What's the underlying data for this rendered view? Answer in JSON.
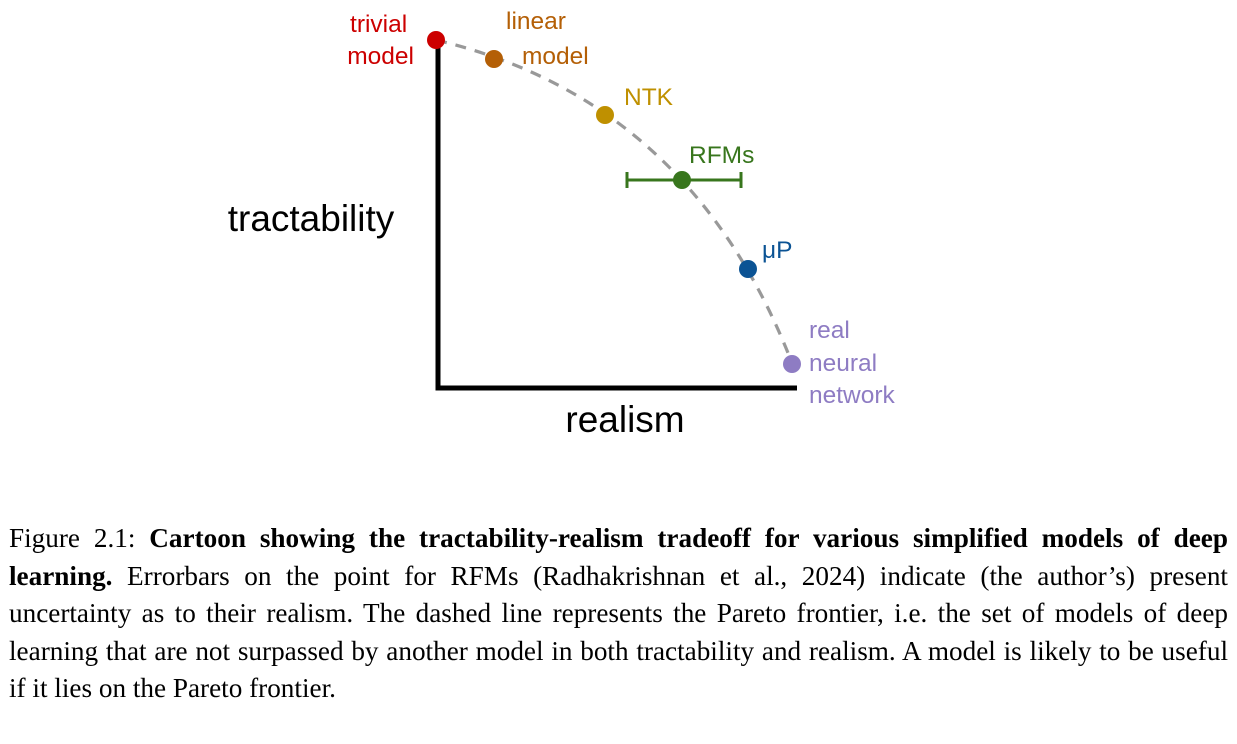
{
  "figure": {
    "y_axis_label": "tractability",
    "x_axis_label": "realism",
    "colors": {
      "axis": "#000000",
      "frontier": "#999999",
      "trivial_model": "#cc0000",
      "linear_model": "#b45f06",
      "ntk": "#bf9000",
      "rfms": "#38761d",
      "mup": "#0b5394",
      "real_network": "#8e7cc3"
    },
    "points": [
      {
        "name": "trivial-model",
        "label_lines": [
          "trivial",
          "model"
        ],
        "color": "#cc0000"
      },
      {
        "name": "linear-model",
        "label_lines": [
          "linear",
          "model"
        ],
        "color": "#b45f06"
      },
      {
        "name": "ntk",
        "label_lines": [
          "NTK"
        ],
        "color": "#bf9000"
      },
      {
        "name": "rfms",
        "label_lines": [
          "RFMs"
        ],
        "color": "#38761d"
      },
      {
        "name": "mup",
        "label_lines": [
          "μP"
        ],
        "color": "#0b5394"
      },
      {
        "name": "real-neural-network",
        "label_lines": [
          "real",
          "neural",
          "network"
        ],
        "color": "#8e7cc3"
      }
    ]
  },
  "caption": {
    "prefix": "Figure 2.1: ",
    "bold_title": "Cartoon showing the tractability-realism tradeoff for various simplified models of deep learning.",
    "body": " Errorbars on the point for RFMs (Radhakrishnan et al., 2024) indicate (the author’s) present uncertainty as to their realism. The dashed line represents the Pareto frontier, i.e. the set of models of deep learning that are not surpassed by another model in both tractability and realism. A model is likely to be useful if it lies on the Pareto frontier."
  }
}
